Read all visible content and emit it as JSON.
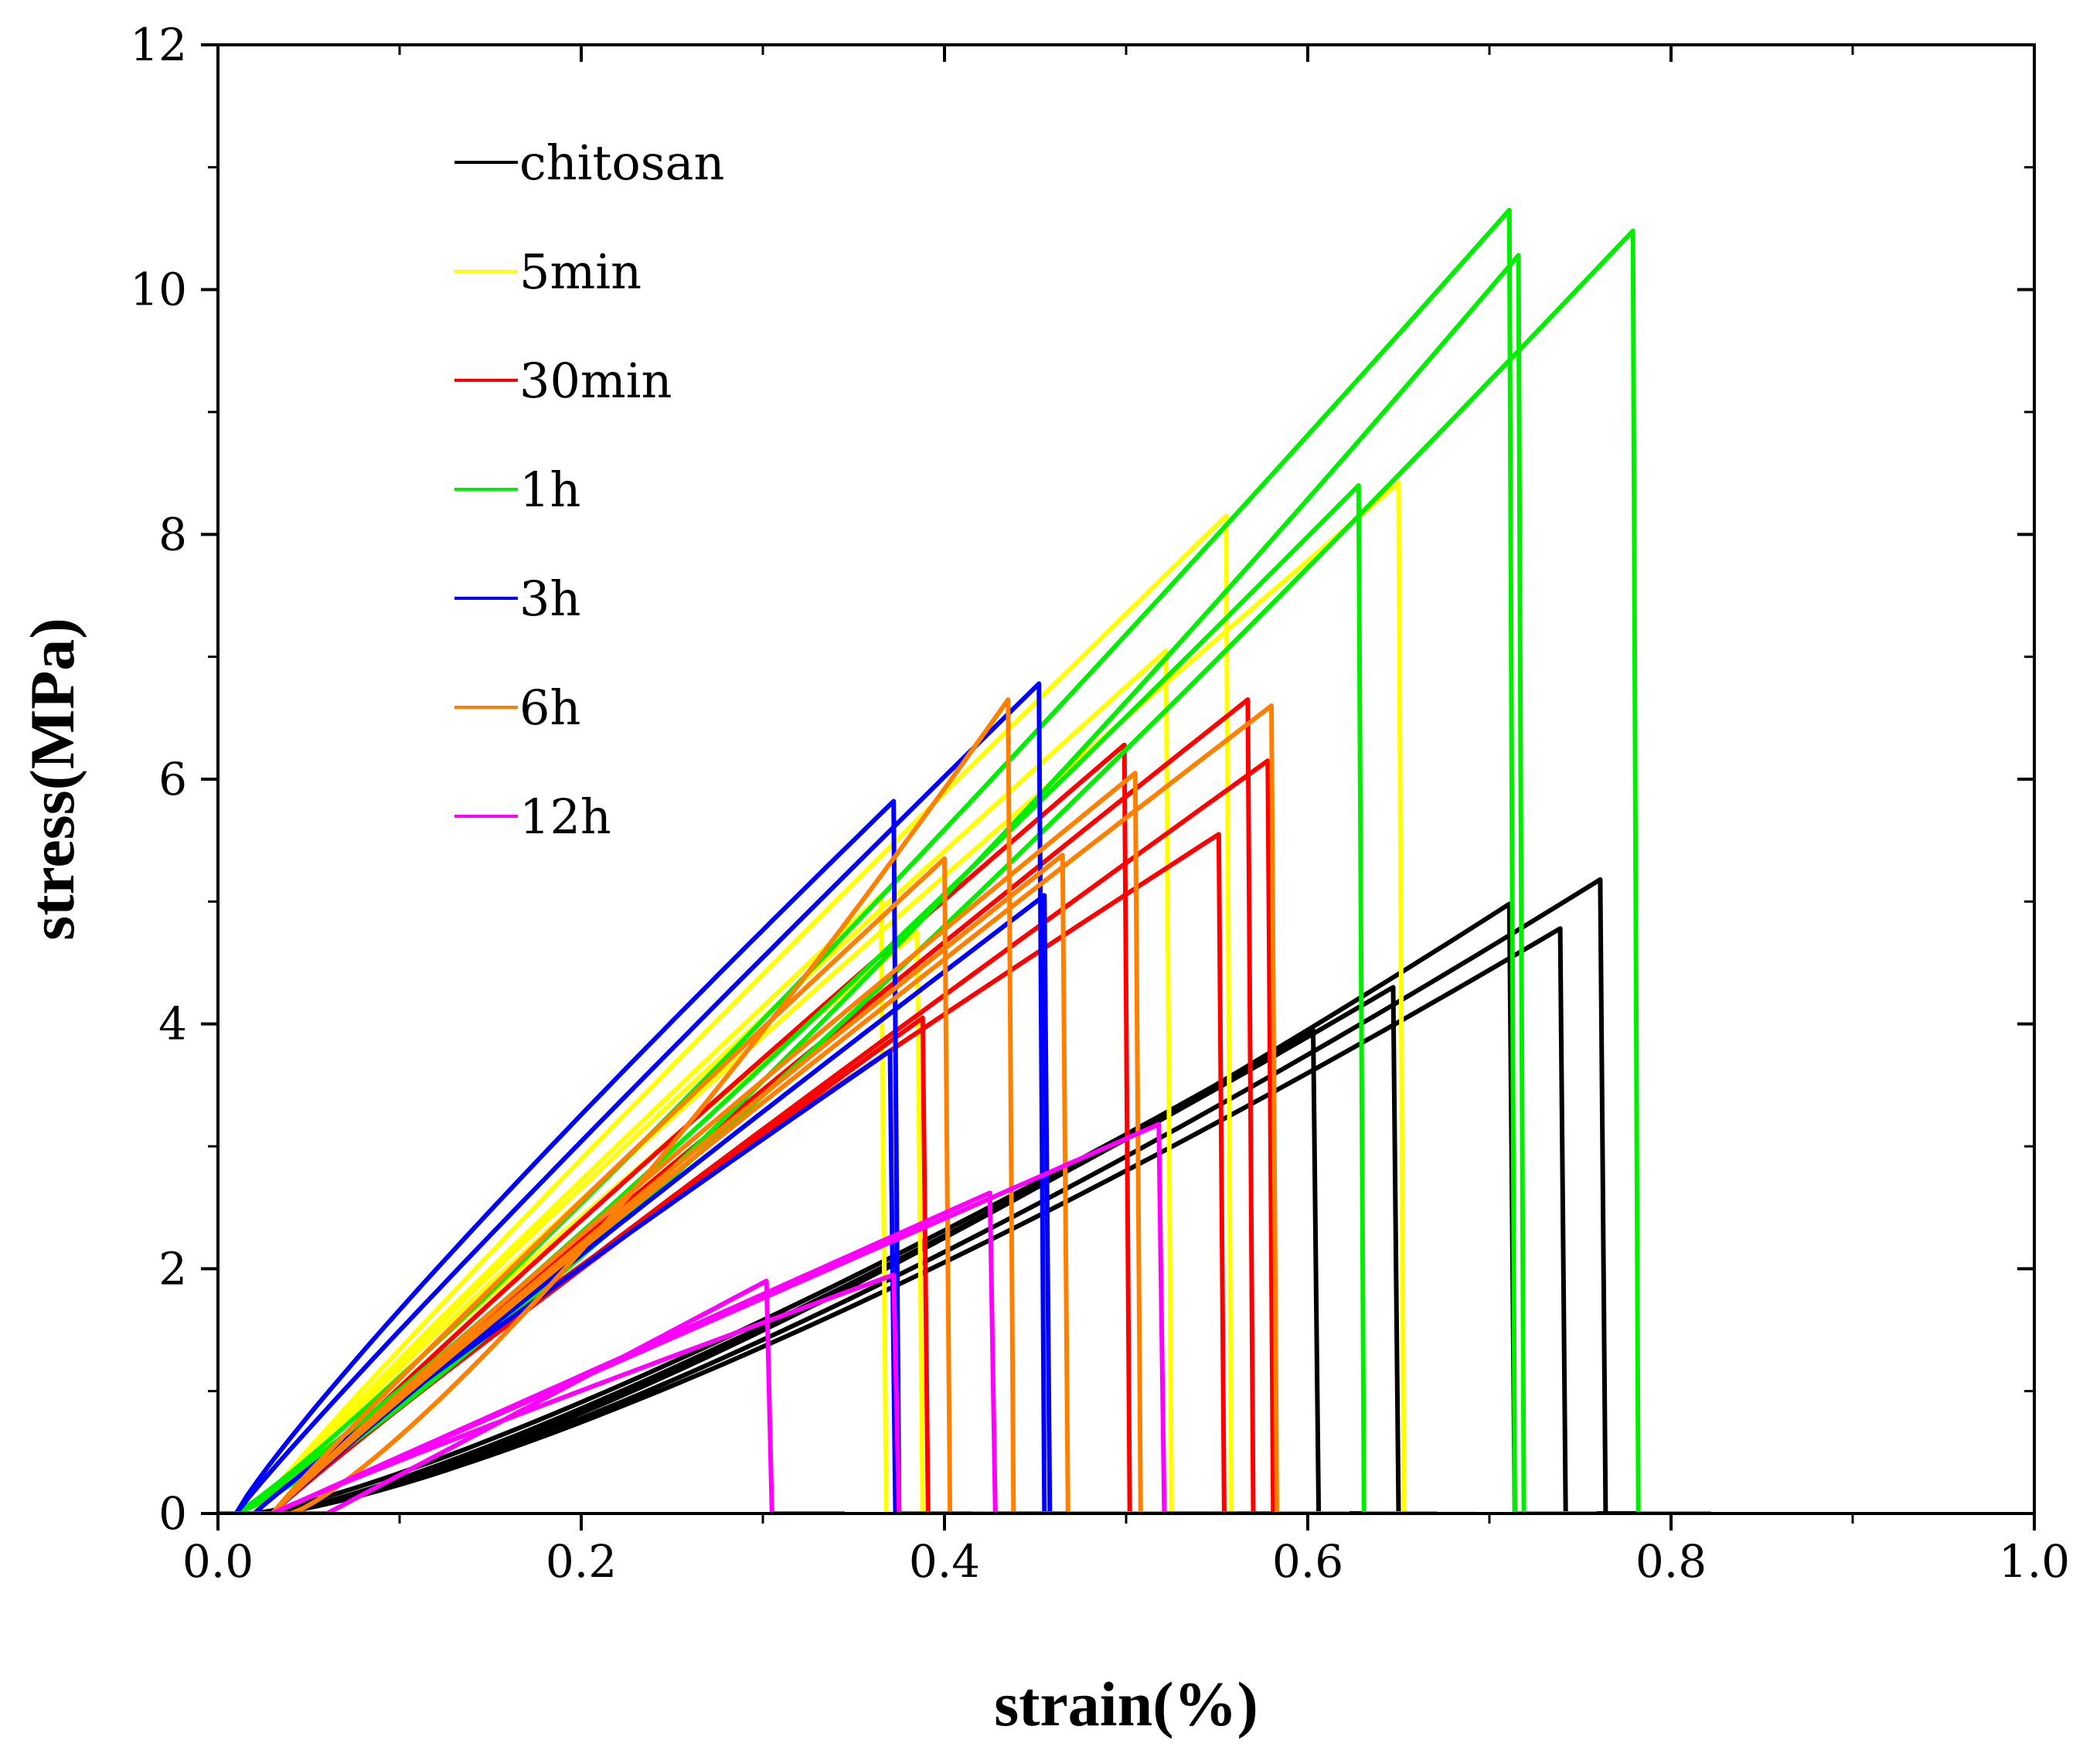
{
  "chart_data": {
    "type": "line",
    "title": "",
    "xlabel": "strain(%)",
    "ylabel": "stress(MPa)",
    "xlim": [
      0.0,
      1.0
    ],
    "ylim": [
      0,
      12
    ],
    "x_ticks": [
      "0.0",
      "0.2",
      "0.4",
      "0.6",
      "0.8",
      "1.0"
    ],
    "y_ticks": [
      "0",
      "2",
      "4",
      "6",
      "8",
      "10",
      "12"
    ],
    "legend_position": "top-left",
    "series": [
      {
        "name": "chitosan",
        "color": "#000000",
        "specimens": [
          {
            "start": 0.02,
            "break_strain": 0.603,
            "peak_stress": 3.95,
            "shape": 1.25,
            "drop_to": 0.0
          },
          {
            "start": 0.03,
            "break_strain": 0.647,
            "peak_stress": 4.3,
            "shape": 1.25,
            "drop_to": 0.0
          },
          {
            "start": 0.03,
            "break_strain": 0.711,
            "peak_stress": 4.98,
            "shape": 1.3,
            "drop_to": 0.0
          },
          {
            "start": 0.03,
            "break_strain": 0.739,
            "peak_stress": 4.78,
            "shape": 1.3,
            "drop_to": 0.0
          },
          {
            "start": 0.03,
            "break_strain": 0.761,
            "peak_stress": 5.18,
            "shape": 1.3,
            "drop_to": 0.0
          }
        ]
      },
      {
        "name": "5min",
        "color": "#ffff00",
        "specimens": [
          {
            "start": 0.02,
            "break_strain": 0.365,
            "peak_stress": 5.05,
            "shape": 0.95,
            "drop_to": 0.0
          },
          {
            "start": 0.02,
            "break_strain": 0.385,
            "peak_stress": 4.75,
            "shape": 0.95,
            "drop_to": 0.0
          },
          {
            "start": 0.02,
            "break_strain": 0.522,
            "peak_stress": 7.05,
            "shape": 0.95,
            "drop_to": 0.0
          },
          {
            "start": 0.02,
            "break_strain": 0.555,
            "peak_stress": 8.15,
            "shape": 0.95,
            "drop_to": 0.0
          },
          {
            "start": 0.02,
            "break_strain": 0.65,
            "peak_stress": 8.42,
            "shape": 0.95,
            "drop_to": 0.0
          }
        ]
      },
      {
        "name": "30min",
        "color": "#ff0000",
        "specimens": [
          {
            "start": 0.03,
            "break_strain": 0.388,
            "peak_stress": 4.05,
            "shape": 0.95,
            "drop_to": 0.0
          },
          {
            "start": 0.03,
            "break_strain": 0.499,
            "peak_stress": 6.28,
            "shape": 0.95,
            "drop_to": 0.0
          },
          {
            "start": 0.03,
            "break_strain": 0.551,
            "peak_stress": 5.55,
            "shape": 0.9,
            "drop_to": 0.0
          },
          {
            "start": 0.03,
            "break_strain": 0.567,
            "peak_stress": 6.65,
            "shape": 0.95,
            "drop_to": 0.0
          },
          {
            "start": 0.03,
            "break_strain": 0.578,
            "peak_stress": 6.15,
            "shape": 0.95,
            "drop_to": 0.0
          }
        ]
      },
      {
        "name": "1h",
        "color": "#00ee00",
        "specimens": [
          {
            "start": 0.01,
            "break_strain": 0.628,
            "peak_stress": 8.4,
            "shape": 1.1,
            "drop_to": 0.0
          },
          {
            "start": 0.01,
            "break_strain": 0.711,
            "peak_stress": 10.65,
            "shape": 1.1,
            "drop_to": 0.0
          },
          {
            "start": 0.01,
            "break_strain": 0.716,
            "peak_stress": 10.28,
            "shape": 1.2,
            "drop_to": 0.0
          },
          {
            "start": 0.01,
            "break_strain": 0.779,
            "peak_stress": 10.48,
            "shape": 1.15,
            "drop_to": 0.0
          }
        ]
      },
      {
        "name": "3h",
        "color": "#0000ff",
        "specimens": [
          {
            "start": 0.01,
            "break_strain": 0.372,
            "peak_stress": 5.82,
            "shape": 0.9,
            "drop_to": 0.0
          },
          {
            "start": 0.02,
            "break_strain": 0.37,
            "peak_stress": 3.78,
            "shape": 0.95,
            "drop_to": 0.0
          },
          {
            "start": 0.01,
            "break_strain": 0.452,
            "peak_stress": 6.78,
            "shape": 0.95,
            "drop_to": 0.0
          },
          {
            "start": 0.03,
            "break_strain": 0.455,
            "peak_stress": 5.05,
            "shape": 0.95,
            "drop_to": 0.0
          }
        ]
      },
      {
        "name": "6h",
        "color": "#ff8000",
        "specimens": [
          {
            "start": 0.03,
            "break_strain": 0.4,
            "peak_stress": 5.35,
            "shape": 0.95,
            "drop_to": 0.0
          },
          {
            "start": 0.04,
            "break_strain": 0.435,
            "peak_stress": 6.65,
            "shape": 1.25,
            "drop_to": 0.0
          },
          {
            "start": 0.03,
            "break_strain": 0.465,
            "peak_stress": 5.38,
            "shape": 0.95,
            "drop_to": 0.0
          },
          {
            "start": 0.03,
            "break_strain": 0.505,
            "peak_stress": 6.05,
            "shape": 0.95,
            "drop_to": 0.0
          },
          {
            "start": 0.03,
            "break_strain": 0.58,
            "peak_stress": 6.6,
            "shape": 0.95,
            "drop_to": 0.0
          }
        ]
      },
      {
        "name": "12h",
        "color": "#ff00ff",
        "specimens": [
          {
            "start": 0.06,
            "break_strain": 0.302,
            "peak_stress": 1.9,
            "shape": 1.0,
            "drop_to": 0.0
          },
          {
            "start": 0.03,
            "break_strain": 0.372,
            "peak_stress": 1.95,
            "shape": 0.95,
            "drop_to": 0.0
          },
          {
            "start": 0.03,
            "break_strain": 0.425,
            "peak_stress": 2.62,
            "shape": 1.0,
            "drop_to": 0.0
          },
          {
            "start": 0.03,
            "break_strain": 0.518,
            "peak_stress": 3.18,
            "shape": 1.0,
            "drop_to": 0.0
          }
        ]
      }
    ]
  }
}
